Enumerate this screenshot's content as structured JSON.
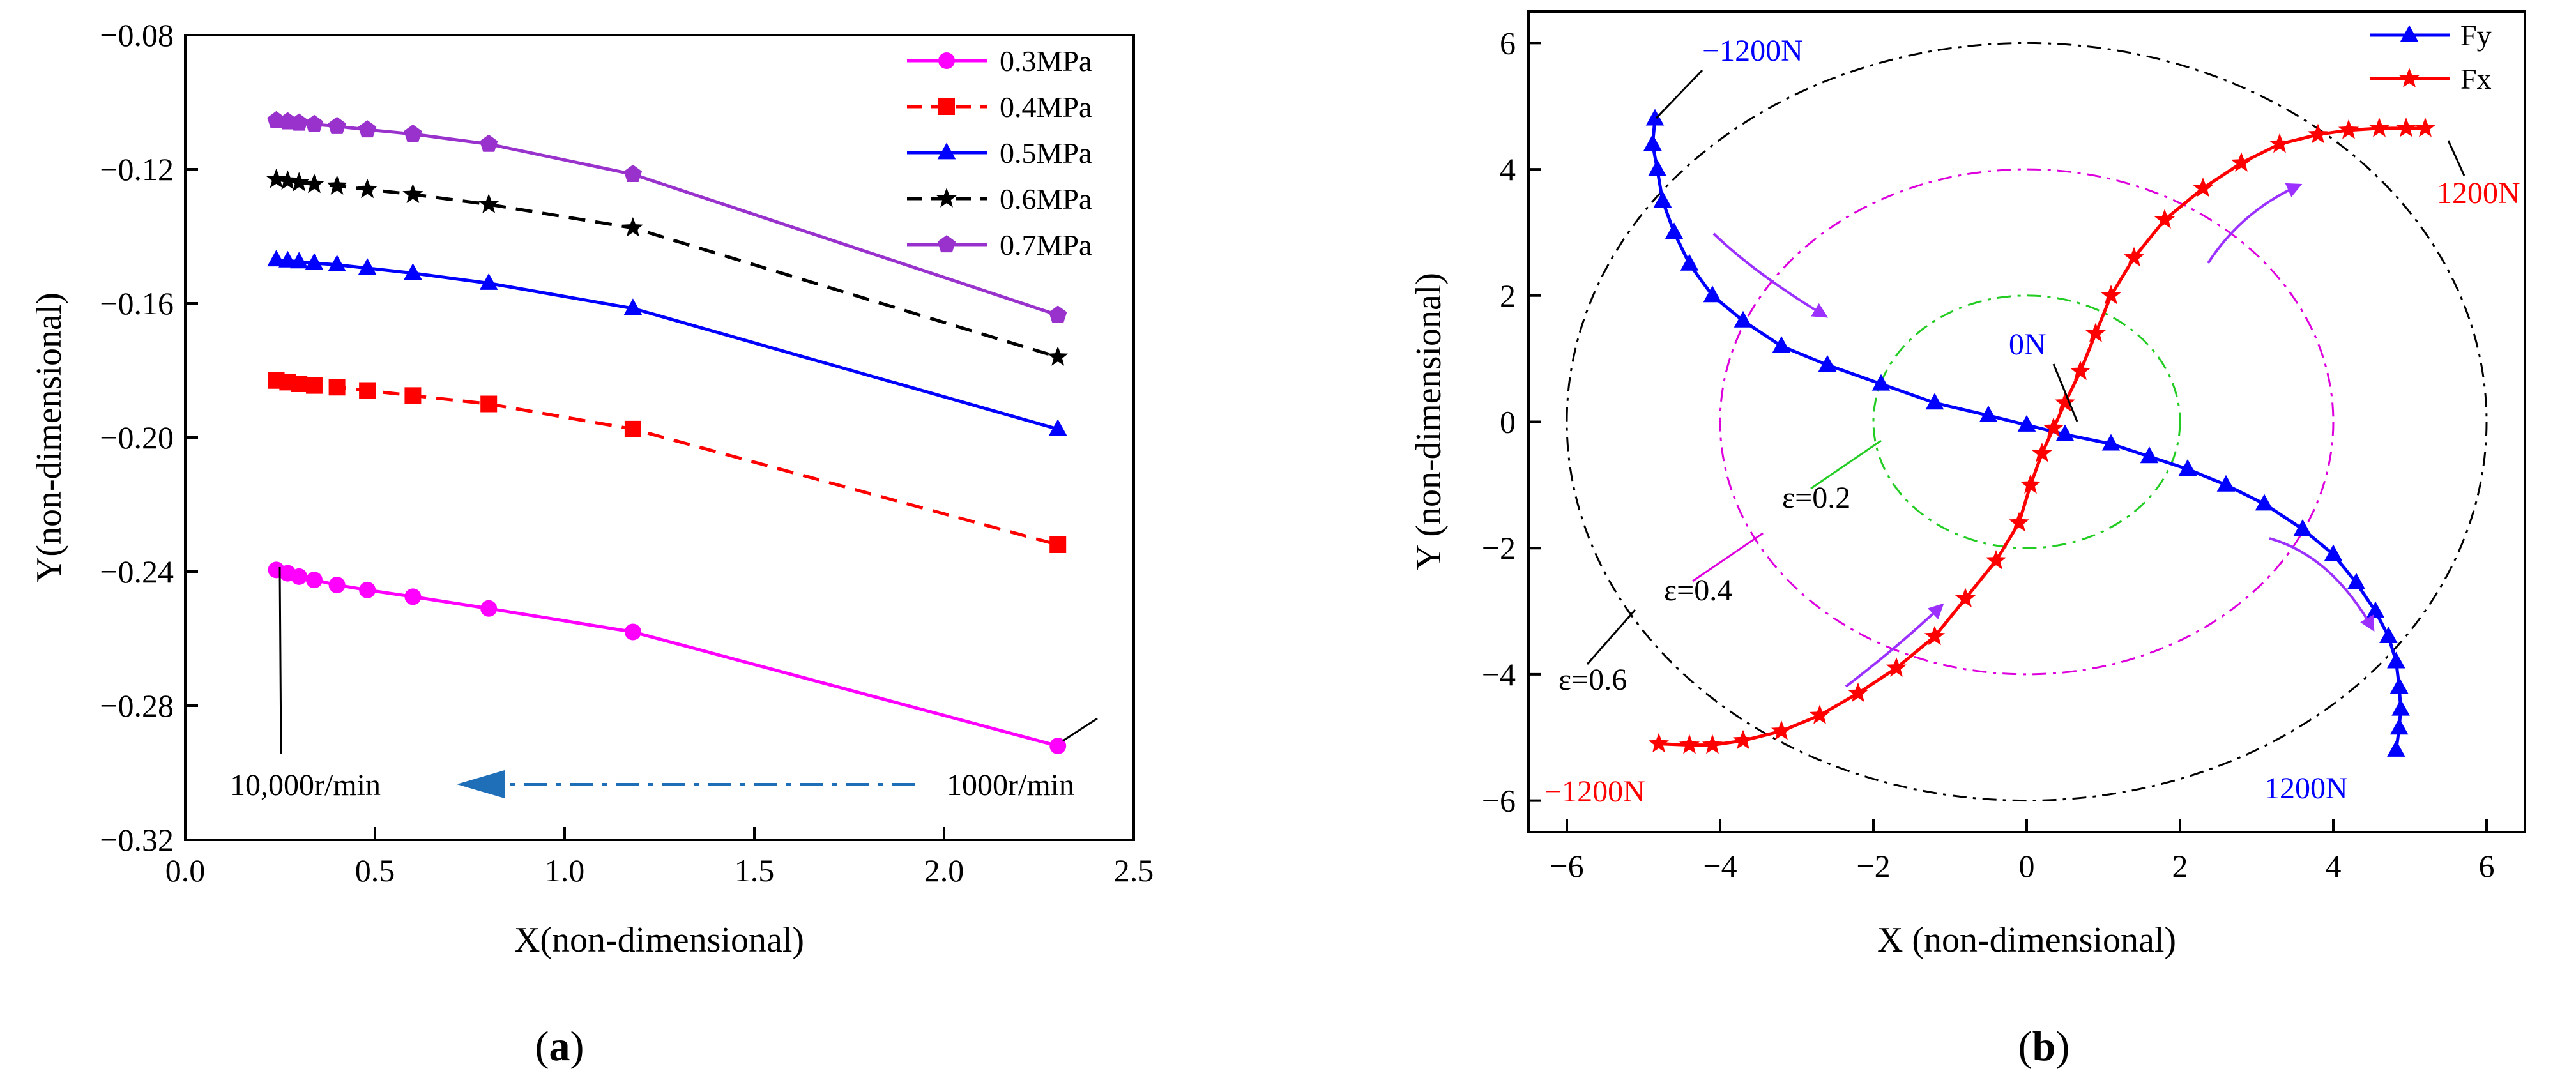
{
  "chart_data": [
    {
      "type": "line",
      "panel_label": [
        "(",
        "a",
        ")"
      ],
      "xlabel": "X(non-dimensional)",
      "ylabel": "Y(non-dimensional)",
      "xlim": [
        0.0,
        2.5
      ],
      "ylim": [
        -0.32,
        -0.08
      ],
      "xticks": [
        "0.0",
        "0.5",
        "1.0",
        "1.5",
        "2.0",
        "2.5"
      ],
      "yticks": [
        "−0.32",
        "−0.28",
        "−0.24",
        "−0.20",
        "−0.16",
        "−0.12",
        "−0.08"
      ],
      "legend_position": "top-right",
      "series": [
        {
          "name": "0.3MPa",
          "color": "#ff00ff",
          "marker": "circle",
          "dash": "solid",
          "x": [
            0.24,
            0.27,
            0.3,
            0.34,
            0.4,
            0.48,
            0.6,
            0.8,
            1.18,
            2.3
          ],
          "y": [
            -0.2395,
            -0.2405,
            -0.2415,
            -0.2425,
            -0.244,
            -0.2455,
            -0.2475,
            -0.251,
            -0.258,
            -0.292
          ]
        },
        {
          "name": "0.4MPa",
          "color": "#ff0000",
          "marker": "square",
          "dash": "dashed",
          "x": [
            0.24,
            0.27,
            0.3,
            0.34,
            0.4,
            0.48,
            0.6,
            0.8,
            1.18,
            2.3
          ],
          "y": [
            -0.183,
            -0.1835,
            -0.184,
            -0.1845,
            -0.185,
            -0.186,
            -0.1875,
            -0.19,
            -0.1975,
            -0.232
          ]
        },
        {
          "name": "0.5MPa",
          "color": "#0000ff",
          "marker": "triangle",
          "dash": "solid",
          "x": [
            0.24,
            0.27,
            0.3,
            0.34,
            0.4,
            0.48,
            0.6,
            0.8,
            1.18,
            2.3
          ],
          "y": [
            -0.147,
            -0.1473,
            -0.1476,
            -0.148,
            -0.1485,
            -0.1495,
            -0.151,
            -0.154,
            -0.1615,
            -0.1975
          ]
        },
        {
          "name": "0.6MPa",
          "color": "#000000",
          "marker": "star",
          "dash": "dashed",
          "x": [
            0.24,
            0.27,
            0.3,
            0.34,
            0.4,
            0.48,
            0.6,
            0.8,
            1.18,
            2.3
          ],
          "y": [
            -0.123,
            -0.1235,
            -0.124,
            -0.1245,
            -0.125,
            -0.126,
            -0.1275,
            -0.1305,
            -0.1375,
            -0.176
          ]
        },
        {
          "name": "0.7MPa",
          "color": "#9932cc",
          "marker": "pentagon",
          "dash": "solid",
          "x": [
            0.24,
            0.27,
            0.3,
            0.34,
            0.4,
            0.48,
            0.6,
            0.8,
            1.18,
            2.3
          ],
          "y": [
            -0.1055,
            -0.1058,
            -0.1062,
            -0.1066,
            -0.1072,
            -0.1082,
            -0.1095,
            -0.1125,
            -0.1215,
            -0.1635
          ]
        }
      ],
      "annotations": {
        "high_speed": "10,000r/min",
        "low_speed": "1000r/min",
        "arrow_color": "#1f6fb8"
      }
    },
    {
      "type": "line",
      "panel_label": [
        "(",
        "b",
        ")"
      ],
      "xlabel": "X (non-dimensional)",
      "ylabel": "Y (non-dimensional)",
      "xlim": [
        -6.5,
        6.5
      ],
      "ylim": [
        -6.5,
        6.5
      ],
      "xticks": [
        "−6",
        "−4",
        "−2",
        "0",
        "2",
        "4",
        "6"
      ],
      "yticks": [
        "−6",
        "−4",
        "−2",
        "0",
        "2",
        "4",
        "6"
      ],
      "legend_position": "top-right",
      "series": [
        {
          "name": "Fy",
          "color": "#0000ff",
          "marker": "triangle",
          "x": [
            -4.85,
            -4.88,
            -4.82,
            -4.75,
            -4.6,
            -4.4,
            -4.1,
            -3.7,
            -3.2,
            -2.6,
            -1.9,
            -1.2,
            -0.5,
            0.0,
            0.5,
            1.1,
            1.6,
            2.1,
            2.6,
            3.1,
            3.6,
            4.0,
            4.3,
            4.55,
            4.72,
            4.82,
            4.86,
            4.88,
            4.86,
            4.82
          ],
          "y": [
            4.8,
            4.4,
            4.0,
            3.5,
            3.0,
            2.5,
            2.0,
            1.6,
            1.2,
            0.9,
            0.6,
            0.3,
            0.1,
            -0.05,
            -0.2,
            -0.35,
            -0.55,
            -0.75,
            -1.0,
            -1.3,
            -1.7,
            -2.1,
            -2.55,
            -3.0,
            -3.4,
            -3.8,
            -4.2,
            -4.55,
            -4.85,
            -5.2
          ],
          "marker_x": [
            -4.85,
            -4.88,
            -4.82,
            -4.75,
            -4.6,
            -4.4,
            -4.1,
            -3.7,
            -3.2,
            -2.6,
            -1.9,
            -1.2,
            -0.5,
            0.0,
            0.5,
            1.1,
            1.6,
            2.1,
            2.6,
            3.1,
            3.6,
            4.0,
            4.3,
            4.55,
            4.72,
            4.82,
            4.86,
            4.88,
            4.86,
            4.82
          ],
          "marker_y": [
            4.8,
            4.4,
            4.0,
            3.5,
            3.0,
            2.5,
            2.0,
            1.6,
            1.2,
            0.9,
            0.6,
            0.3,
            0.1,
            -0.05,
            -0.2,
            -0.35,
            -0.55,
            -0.75,
            -1.0,
            -1.3,
            -1.7,
            -2.1,
            -2.55,
            -3.0,
            -3.4,
            -3.8,
            -4.2,
            -4.55,
            -4.85,
            -5.2
          ]
        },
        {
          "name": "Fx",
          "color": "#ff0000",
          "marker": "star",
          "x": [
            -4.8,
            -4.4,
            -4.1,
            -3.7,
            -3.2,
            -2.7,
            -2.2,
            -1.7,
            -1.2,
            -0.8,
            -0.4,
            -0.1,
            0.05,
            0.2,
            0.35,
            0.5,
            0.7,
            0.9,
            1.1,
            1.4,
            1.8,
            2.3,
            2.8,
            3.3,
            3.8,
            4.2,
            4.6,
            4.95,
            5.2
          ],
          "y": [
            -5.1,
            -5.12,
            -5.12,
            -5.05,
            -4.9,
            -4.65,
            -4.3,
            -3.9,
            -3.4,
            -2.8,
            -2.2,
            -1.6,
            -1.0,
            -0.5,
            -0.1,
            0.3,
            0.8,
            1.4,
            2.0,
            2.6,
            3.2,
            3.7,
            4.1,
            4.4,
            4.55,
            4.62,
            4.65,
            4.65,
            4.65
          ],
          "marker_x": [
            -4.8,
            -4.4,
            -4.1,
            -3.7,
            -3.2,
            -2.7,
            -2.2,
            -1.7,
            -1.2,
            -0.8,
            -0.4,
            -0.1,
            0.05,
            0.2,
            0.35,
            0.5,
            0.7,
            0.9,
            1.1,
            1.4,
            1.8,
            2.3,
            2.8,
            3.3,
            3.8,
            4.2,
            4.6,
            4.95,
            5.2
          ],
          "marker_y": [
            -5.1,
            -5.12,
            -5.12,
            -5.05,
            -4.9,
            -4.65,
            -4.3,
            -3.9,
            -3.4,
            -2.8,
            -2.2,
            -1.6,
            -1.0,
            -0.5,
            -0.1,
            0.3,
            0.8,
            1.4,
            2.0,
            2.6,
            3.2,
            3.7,
            4.1,
            4.4,
            4.55,
            4.62,
            4.65,
            4.65,
            4.65
          ]
        }
      ],
      "circles": [
        {
          "label": "ε=0.2",
          "radius": 2.0,
          "color": "#22cc22"
        },
        {
          "label": "ε=0.4",
          "radius": 4.0,
          "color": "#dd00dd"
        },
        {
          "label": "ε=0.6",
          "radius": 6.0,
          "color": "#000000"
        }
      ],
      "annotations": {
        "fy_start": "−1200N",
        "fy_end": "1200N",
        "fx_start": "−1200N",
        "fx_end": "1200N",
        "zero": "0N",
        "arrow_color": "#9b30ff"
      }
    }
  ]
}
